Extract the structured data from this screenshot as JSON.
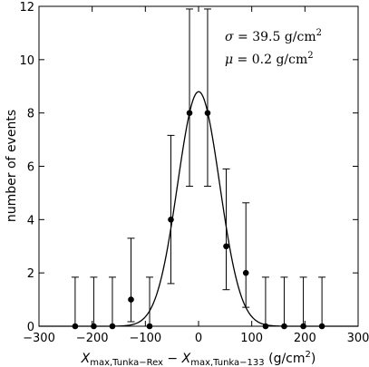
{
  "chart_data": {
    "type": "scatter",
    "xlim": [
      -300,
      300
    ],
    "ylim": [
      0,
      12
    ],
    "xticks": [
      -300,
      -200,
      -100,
      0,
      100,
      200,
      300
    ],
    "yticks": [
      0,
      2,
      4,
      6,
      8,
      10,
      12
    ],
    "ylabel": "number of events",
    "xlabel": {
      "x1": "X",
      "sub1": "max,Tunka−Rex",
      "minus": " − ",
      "x2": "X",
      "sub2": "max,Tunka−133",
      "units": " (g/cm",
      "units_sup": "2",
      "units_close": ")"
    },
    "points": [
      {
        "x": -232,
        "y": 0,
        "err_low": 0,
        "err_high": 1.84
      },
      {
        "x": -197,
        "y": 0,
        "err_low": 0,
        "err_high": 1.84
      },
      {
        "x": -162,
        "y": 0,
        "err_low": 0,
        "err_high": 1.84
      },
      {
        "x": -127,
        "y": 1,
        "err_low": 0.83,
        "err_high": 2.3
      },
      {
        "x": -92,
        "y": 0,
        "err_low": 0,
        "err_high": 1.84
      },
      {
        "x": -52,
        "y": 4,
        "err_low": 2.4,
        "err_high": 3.16
      },
      {
        "x": -17,
        "y": 8,
        "err_low": 2.75,
        "err_high": 3.9
      },
      {
        "x": 17,
        "y": 8,
        "err_low": 2.75,
        "err_high": 3.9
      },
      {
        "x": 52,
        "y": 3,
        "err_low": 1.63,
        "err_high": 2.9
      },
      {
        "x": 89,
        "y": 2,
        "err_low": 1.29,
        "err_high": 2.63
      },
      {
        "x": 126,
        "y": 0,
        "err_low": 0,
        "err_high": 1.84
      },
      {
        "x": 161,
        "y": 0,
        "err_low": 0,
        "err_high": 1.84
      },
      {
        "x": 197,
        "y": 0,
        "err_low": 0,
        "err_high": 1.84
      },
      {
        "x": 232,
        "y": 0,
        "err_low": 0,
        "err_high": 1.84
      }
    ],
    "fit": {
      "type": "gaussian",
      "amplitude": 8.8,
      "mu": 0.2,
      "sigma": 39.5
    },
    "annotations": {
      "sigma": {
        "symbol": "σ",
        "text": " = 39.5 g/cm",
        "sup": "2"
      },
      "mu": {
        "symbol": "μ",
        "text": " = 0.2 g/cm",
        "sup": "2"
      }
    },
    "grid": false,
    "legend": "none"
  }
}
